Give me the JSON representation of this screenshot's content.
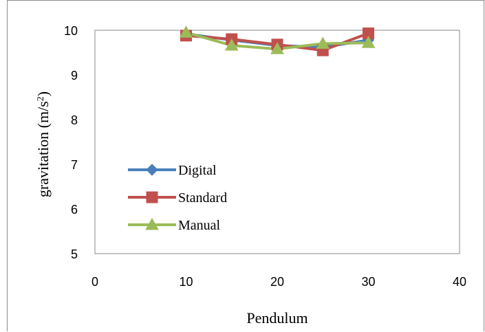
{
  "chart_data": {
    "type": "line",
    "title": "",
    "xlabel": "Pendulum",
    "ylabel_main": "gravitation (m/s",
    "ylabel_sup": "2",
    "ylabel_close": ")",
    "xlim": [
      0,
      40
    ],
    "ylim": [
      5,
      10
    ],
    "xticks": [
      0,
      10,
      20,
      30,
      40
    ],
    "yticks": [
      5,
      6,
      7,
      8,
      9,
      10
    ],
    "grid": false,
    "legend_position": "left",
    "x": [
      10,
      15,
      20,
      25,
      30
    ],
    "series": [
      {
        "name": "Digital",
        "color": "#4a7ebb",
        "marker": "diamond",
        "values": [
          9.92,
          9.78,
          9.66,
          9.62,
          9.78
        ]
      },
      {
        "name": "Standard",
        "color": "#c0504d",
        "marker": "square",
        "values": [
          9.88,
          9.8,
          9.68,
          9.55,
          9.93
        ]
      },
      {
        "name": "Manual",
        "color": "#9bbb59",
        "marker": "triangle",
        "values": [
          9.95,
          9.66,
          9.58,
          9.7,
          9.72
        ]
      }
    ]
  }
}
